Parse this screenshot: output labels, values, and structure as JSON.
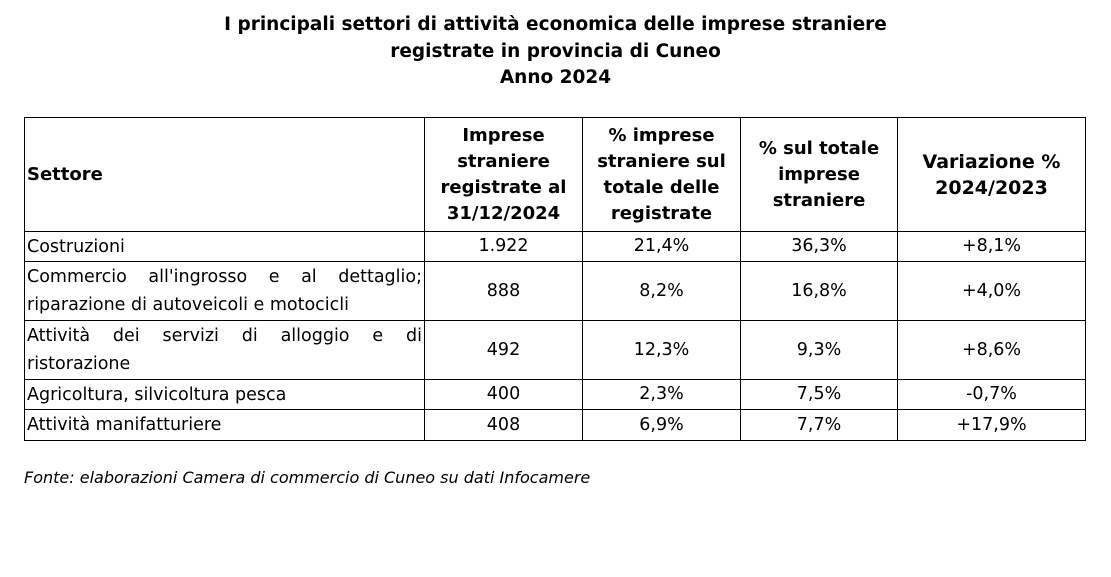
{
  "title": {
    "line1": "I principali settori di attività economica delle imprese straniere",
    "line2": "registrate in provincia di Cuneo",
    "line3": "Anno 2024"
  },
  "table": {
    "headers": [
      "Settore",
      "Imprese straniere registrate al 31/12/2024",
      "% imprese straniere sul totale delle registrate",
      "% sul totale imprese straniere",
      "Variazione % 2024/2023"
    ],
    "rows": [
      {
        "sector": "Costruzioni",
        "registrate": "1.922",
        "pct_registrate": "21,4%",
        "pct_straniere": "36,3%",
        "variazione": "+8,1%"
      },
      {
        "sector": "Commercio all'ingrosso e al dettaglio; riparazione di autoveicoli e motocicli",
        "registrate": "888",
        "pct_registrate": "8,2%",
        "pct_straniere": "16,8%",
        "variazione": "+4,0%"
      },
      {
        "sector": "Attività dei servizi di alloggio e di ristorazione",
        "registrate": "492",
        "pct_registrate": "12,3%",
        "pct_straniere": "9,3%",
        "variazione": "+8,6%"
      },
      {
        "sector": "Agricoltura, silvicoltura pesca",
        "registrate": "400",
        "pct_registrate": "2,3%",
        "pct_straniere": "7,5%",
        "variazione": "-0,7%"
      },
      {
        "sector": "Attività manifatturiere",
        "registrate": "408",
        "pct_registrate": "6,9%",
        "pct_straniere": "7,7%",
        "variazione": "+17,9%"
      }
    ]
  },
  "source": "Fonte: elaborazioni Camera di commercio di Cuneo su dati Infocamere"
}
